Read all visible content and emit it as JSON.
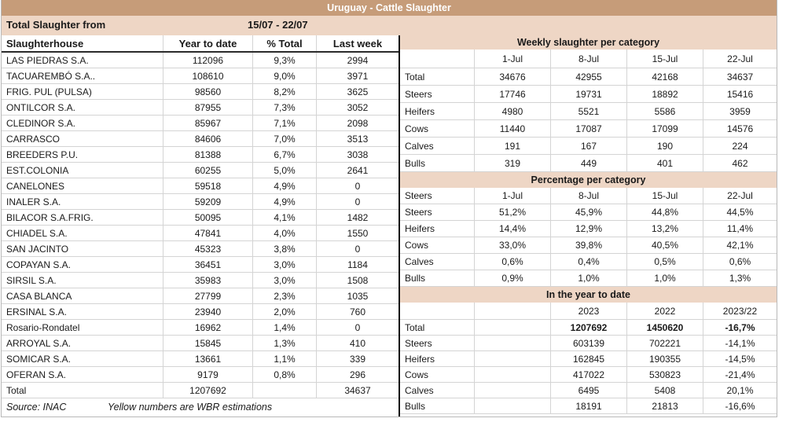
{
  "title": "Uruguay - Cattle Slaughter",
  "colors": {
    "title_bg": "#C69C79",
    "band_bg": "#EED6C5",
    "grid_line": "#D4D4D4",
    "divider": "#111111",
    "text": "#1A1A1A",
    "title_text": "#FFFFFF"
  },
  "period": {
    "label": "Total Slaughter from",
    "range": "15/07 - 22/07"
  },
  "left_table": {
    "headers": [
      "Slaughterhouse",
      "Year to date",
      "% Total",
      "Last week"
    ],
    "rows": [
      [
        "LAS PIEDRAS S.A.",
        "112096",
        "9,3%",
        "2994"
      ],
      [
        "TACUAREMBÓ S.A..",
        "108610",
        "9,0%",
        "3971"
      ],
      [
        "FRIG. PUL (PULSA)",
        "98560",
        "8,2%",
        "3625"
      ],
      [
        "ONTILCOR S.A.",
        "87955",
        "7,3%",
        "3052"
      ],
      [
        "CLEDINOR S.A.",
        "85967",
        "7,1%",
        "2098"
      ],
      [
        "CARRASCO",
        "84606",
        "7,0%",
        "3513"
      ],
      [
        "BREEDERS P.U.",
        "81388",
        "6,7%",
        "3038"
      ],
      [
        "EST.COLONIA",
        "60255",
        "5,0%",
        "2641"
      ],
      [
        "CANELONES",
        "59518",
        "4,9%",
        "0"
      ],
      [
        "INALER S.A.",
        "59209",
        "4,9%",
        "0"
      ],
      [
        "BILACOR S.A.FRIG.",
        "50095",
        "4,1%",
        "1482"
      ],
      [
        "CHIADEL S.A.",
        "47841",
        "4,0%",
        "1550"
      ],
      [
        "SAN JACINTO",
        "45323",
        "3,8%",
        "0"
      ],
      [
        "COPAYAN S.A.",
        "36451",
        "3,0%",
        "1184"
      ],
      [
        "SIRSIL S.A.",
        "35983",
        "3,0%",
        "1508"
      ],
      [
        "CASA BLANCA",
        "27799",
        "2,3%",
        "1035"
      ],
      [
        "ERSINAL S.A.",
        "23940",
        "2,0%",
        "760"
      ],
      [
        "Rosario-Rondatel",
        "16962",
        "1,4%",
        "0"
      ],
      [
        "ARROYAL S.A.",
        "15845",
        "1,3%",
        "410"
      ],
      [
        "SOMICAR S.A.",
        "13661",
        "1,1%",
        "339"
      ],
      [
        "OFERAN S.A.",
        "9179",
        "0,8%",
        "296"
      ]
    ],
    "total_row": [
      "Total",
      "1207692",
      "",
      "34637"
    ]
  },
  "footer": {
    "source": "Source: INAC",
    "note": "Yellow numbers are WBR estimations"
  },
  "weekly": {
    "title": "Weekly slaughter per category",
    "columns": [
      "",
      "1-Jul",
      "8-Jul",
      "15-Jul",
      "22-Jul"
    ],
    "rows": [
      [
        "Total",
        "34676",
        "42955",
        "42168",
        "34637"
      ],
      [
        "Steers",
        "17746",
        "19731",
        "18892",
        "15416"
      ],
      [
        "Heifers",
        "4980",
        "5521",
        "5586",
        "3959"
      ],
      [
        "Cows",
        "11440",
        "17087",
        "17099",
        "14576"
      ],
      [
        "Calves",
        "191",
        "167",
        "190",
        "224"
      ],
      [
        "Bulls",
        "319",
        "449",
        "401",
        "462"
      ]
    ]
  },
  "percentage": {
    "title": "Percentage per category",
    "columns": [
      "Steers",
      "1-Jul",
      "8-Jul",
      "15-Jul",
      "22-Jul"
    ],
    "rows": [
      [
        "Steers",
        "51,2%",
        "45,9%",
        "44,8%",
        "44,5%"
      ],
      [
        "Heifers",
        "14,4%",
        "12,9%",
        "13,2%",
        "11,4%"
      ],
      [
        "Cows",
        "33,0%",
        "39,8%",
        "40,5%",
        "42,1%"
      ],
      [
        "Calves",
        "0,6%",
        "0,4%",
        "0,5%",
        "0,6%"
      ],
      [
        "Bulls",
        "0,9%",
        "1,0%",
        "1,0%",
        "1,3%"
      ]
    ]
  },
  "ytd": {
    "title": "In the year to date",
    "columns": [
      "",
      "",
      "2023",
      "2022",
      "2023/22"
    ],
    "rows": [
      [
        "Total",
        "",
        "1207692",
        "1450620",
        "-16,7%"
      ],
      [
        "Steers",
        "",
        "603139",
        "702221",
        "-14,1%"
      ],
      [
        "Heifers",
        "",
        "162845",
        "190355",
        "-14,5%"
      ],
      [
        "Cows",
        "",
        "417022",
        "530823",
        "-21,4%"
      ],
      [
        "Calves",
        "",
        "6495",
        "5408",
        "20,1%"
      ],
      [
        "Bulls",
        "",
        "18191",
        "21813",
        "-16,6%"
      ]
    ],
    "bold_row": 0
  }
}
